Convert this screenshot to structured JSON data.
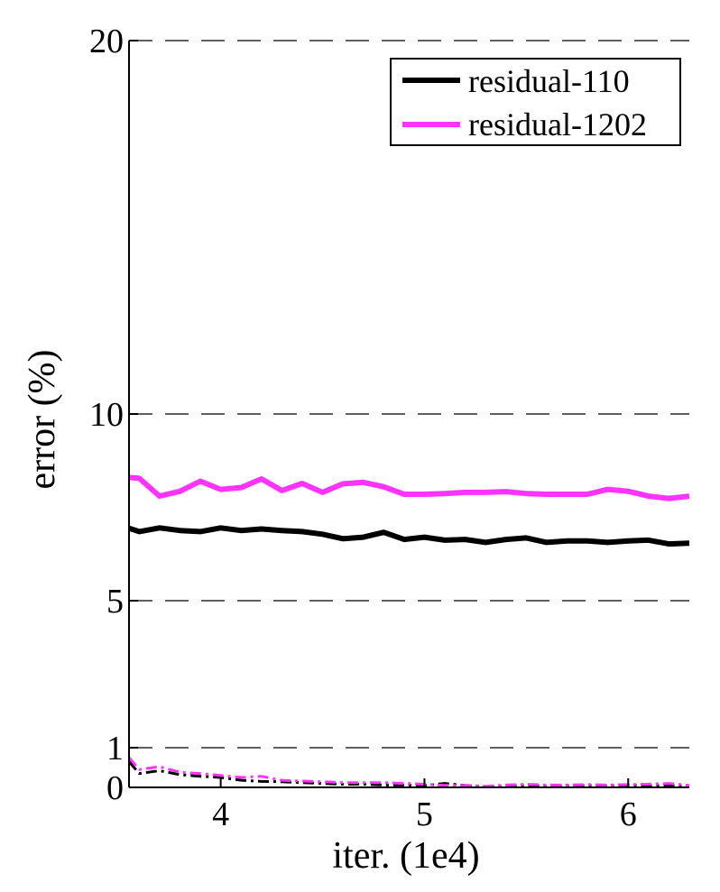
{
  "chart_data": {
    "type": "line",
    "title": "",
    "xlabel": "iter. (1e4)",
    "ylabel": "error (%)",
    "xlim": [
      3.55,
      6.3
    ],
    "x_ticks": [
      4,
      5,
      6
    ],
    "x_tick_labels": [
      "4",
      "5",
      "6"
    ],
    "y_ticks": [
      0,
      1,
      5,
      10,
      20
    ],
    "y_tick_labels": [
      "0",
      "1",
      "5",
      "10",
      "20"
    ],
    "ylim": [
      0,
      20
    ],
    "y_scale": "piecewise-linear (0-1, 1-5, 5-10, 10-20 segments)",
    "grid": "horizontal dashed lines at 1, 5, 10, 20",
    "legend_position": "top-right",
    "legend": [
      {
        "label": "residual-110",
        "color": "#000000"
      },
      {
        "label": "residual-1202",
        "color": "#ff33ff"
      }
    ],
    "x": [
      3.55,
      3.6,
      3.7,
      3.8,
      3.9,
      4.0,
      4.1,
      4.2,
      4.3,
      4.4,
      4.5,
      4.6,
      4.7,
      4.8,
      4.9,
      5.0,
      5.1,
      5.2,
      5.3,
      5.4,
      5.5,
      5.6,
      5.7,
      5.8,
      5.9,
      6.0,
      6.1,
      6.2,
      6.3
    ],
    "series": [
      {
        "name": "residual-110",
        "style": "test (solid, thick)",
        "color": "#000000",
        "values": [
          6.94,
          6.85,
          6.95,
          6.88,
          6.85,
          6.95,
          6.88,
          6.92,
          6.88,
          6.85,
          6.78,
          6.66,
          6.7,
          6.83,
          6.64,
          6.7,
          6.62,
          6.64,
          6.56,
          6.64,
          6.68,
          6.56,
          6.6,
          6.6,
          6.56,
          6.6,
          6.62,
          6.52,
          6.54
        ]
      },
      {
        "name": "residual-1202",
        "style": "test (solid, thick)",
        "color": "#ff33ff",
        "values": [
          8.3,
          8.28,
          7.8,
          7.93,
          8.2,
          7.98,
          8.03,
          8.26,
          7.95,
          8.14,
          7.9,
          8.13,
          8.17,
          8.05,
          7.85,
          7.85,
          7.87,
          7.9,
          7.9,
          7.92,
          7.87,
          7.85,
          7.85,
          7.85,
          7.98,
          7.93,
          7.8,
          7.74,
          7.8
        ]
      },
      {
        "name": "residual-110",
        "style": "train (dash-dot, thin)",
        "color": "#000000",
        "values": [
          0.65,
          0.35,
          0.42,
          0.32,
          0.28,
          0.25,
          0.18,
          0.15,
          0.14,
          0.12,
          0.1,
          0.08,
          0.08,
          0.06,
          0.06,
          0.05,
          0.1,
          0.05,
          0.02,
          0.04,
          0.05,
          0.03,
          0.04,
          0.05,
          0.04,
          0.06,
          0.04,
          0.05,
          0.02
        ]
      },
      {
        "name": "residual-1202",
        "style": "train (dash-dot, thin)",
        "color": "#ff33ff",
        "values": [
          0.75,
          0.45,
          0.52,
          0.38,
          0.35,
          0.3,
          0.25,
          0.28,
          0.18,
          0.16,
          0.14,
          0.12,
          0.12,
          0.12,
          0.1,
          0.08,
          0.05,
          0.05,
          0.03,
          0.06,
          0.08,
          0.06,
          0.06,
          0.07,
          0.06,
          0.07,
          0.08,
          0.1,
          0.05
        ]
      }
    ]
  }
}
